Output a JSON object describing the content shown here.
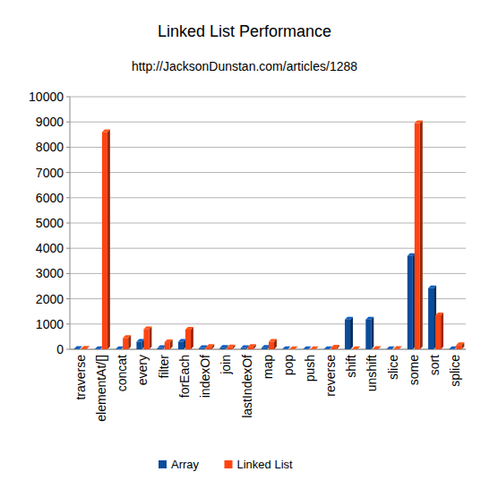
{
  "chart_data": {
    "type": "bar",
    "title": "Linked List Performance",
    "subtitle": "http://JacksonDunstan.com/articles/1288",
    "categories": [
      "traverse",
      "elementAt/[]",
      "concat",
      "every",
      "filter",
      "forEach",
      "indexOf",
      "join",
      "lastIndexOf",
      "map",
      "pop",
      "push",
      "reverse",
      "shift",
      "unshift",
      "slice",
      "some",
      "sort",
      "splice"
    ],
    "series": [
      {
        "name": "Array",
        "color": "#0b4c9c",
        "values": [
          20,
          10,
          10,
          300,
          50,
          300,
          50,
          60,
          50,
          60,
          5,
          5,
          10,
          1180,
          1180,
          10,
          3700,
          2420,
          10
        ]
      },
      {
        "name": "Linked List",
        "color": "#ff4412",
        "values": [
          30,
          8600,
          450,
          800,
          280,
          780,
          100,
          80,
          100,
          300,
          10,
          10,
          70,
          10,
          20,
          20,
          8950,
          1350,
          170
        ]
      }
    ],
    "ylim": [
      0,
      10000
    ],
    "yticks": [
      0,
      1000,
      2000,
      3000,
      4000,
      5000,
      6000,
      7000,
      8000,
      9000,
      10000
    ],
    "grid": true,
    "legend": "bottom"
  }
}
